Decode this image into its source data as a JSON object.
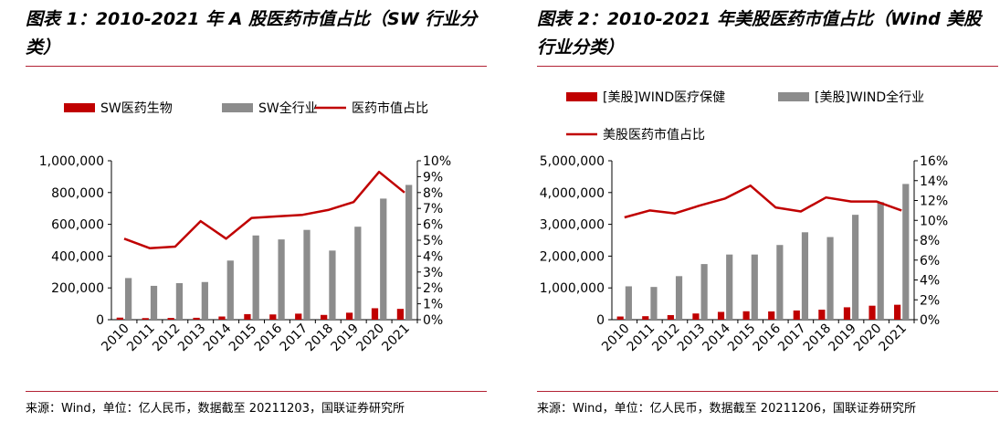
{
  "panels": [
    {
      "title": "图表 1：2010-2021 年 A 股医药市值占比（SW 行业分类）",
      "source": "来源：Wind，单位：亿人民币，数据截至 20211203，国联证券研究所"
    },
    {
      "title": "图表 2：2010-2021 年美股医药市值占比（Wind 美股行业分类）",
      "source": "来源：Wind，单位：亿人民币，数据截至 20211206，国联证券研究所"
    }
  ],
  "colors": {
    "red": "#c00000",
    "gray": "#8c8c8c",
    "rule": "#b22234"
  },
  "chart_data": [
    {
      "type": "bar+line",
      "categories": [
        "2010",
        "2011",
        "2012",
        "2013",
        "2014",
        "2015",
        "2016",
        "2017",
        "2018",
        "2019",
        "2020",
        "2021"
      ],
      "series": [
        {
          "name": "SW医药生物",
          "kind": "bar",
          "axis": "left",
          "color": "#c00000",
          "values": [
            13000,
            10000,
            11000,
            12000,
            20000,
            35000,
            33000,
            38000,
            30000,
            44000,
            72000,
            68000
          ]
        },
        {
          "name": "SW全行业",
          "kind": "bar",
          "axis": "left",
          "color": "#8c8c8c",
          "values": [
            262000,
            213000,
            230000,
            237000,
            372000,
            530000,
            505000,
            565000,
            435000,
            585000,
            762000,
            848000
          ]
        },
        {
          "name": "医药市值占比",
          "kind": "line",
          "axis": "right",
          "color": "#c00000",
          "values": [
            5.1,
            4.5,
            4.6,
            6.2,
            5.1,
            6.4,
            6.5,
            6.6,
            6.9,
            7.4,
            9.3,
            8.0
          ]
        }
      ],
      "y_left": {
        "min": 0,
        "max": 1000000,
        "ticks": [
          "0",
          "200,000",
          "400,000",
          "600,000",
          "800,000",
          "1,000,000"
        ]
      },
      "y_right": {
        "min": 0,
        "max": 10,
        "ticks": [
          "0%",
          "1%",
          "2%",
          "3%",
          "4%",
          "5%",
          "6%",
          "7%",
          "8%",
          "9%",
          "10%"
        ]
      },
      "legend_position": "top"
    },
    {
      "type": "bar+line",
      "categories": [
        "2010",
        "2011",
        "2012",
        "2013",
        "2014",
        "2015",
        "2016",
        "2017",
        "2018",
        "2019",
        "2020",
        "2021"
      ],
      "series": [
        {
          "name": "[美股]WIND医疗保健",
          "kind": "bar",
          "axis": "left",
          "color": "#c00000",
          "values": [
            100000,
            110000,
            145000,
            195000,
            245000,
            265000,
            260000,
            290000,
            315000,
            390000,
            440000,
            470000
          ]
        },
        {
          "name": "[美股]WIND全行业",
          "kind": "bar",
          "axis": "left",
          "color": "#8c8c8c",
          "values": [
            1050000,
            1030000,
            1370000,
            1750000,
            2050000,
            2050000,
            2350000,
            2750000,
            2600000,
            3300000,
            3700000,
            4270000
          ]
        },
        {
          "name": "美股医药市值占比",
          "kind": "line",
          "axis": "right",
          "color": "#c00000",
          "values": [
            10.3,
            11.0,
            10.7,
            11.5,
            12.2,
            13.5,
            11.3,
            10.9,
            12.3,
            11.9,
            11.9,
            11.0
          ]
        }
      ],
      "y_left": {
        "min": 0,
        "max": 5000000,
        "ticks": [
          "0",
          "1,000,000",
          "2,000,000",
          "3,000,000",
          "4,000,000",
          "5,000,000"
        ]
      },
      "y_right": {
        "min": 0,
        "max": 16,
        "ticks": [
          "0%",
          "2%",
          "4%",
          "6%",
          "8%",
          "10%",
          "12%",
          "14%",
          "16%"
        ]
      },
      "legend_position": "top"
    }
  ]
}
